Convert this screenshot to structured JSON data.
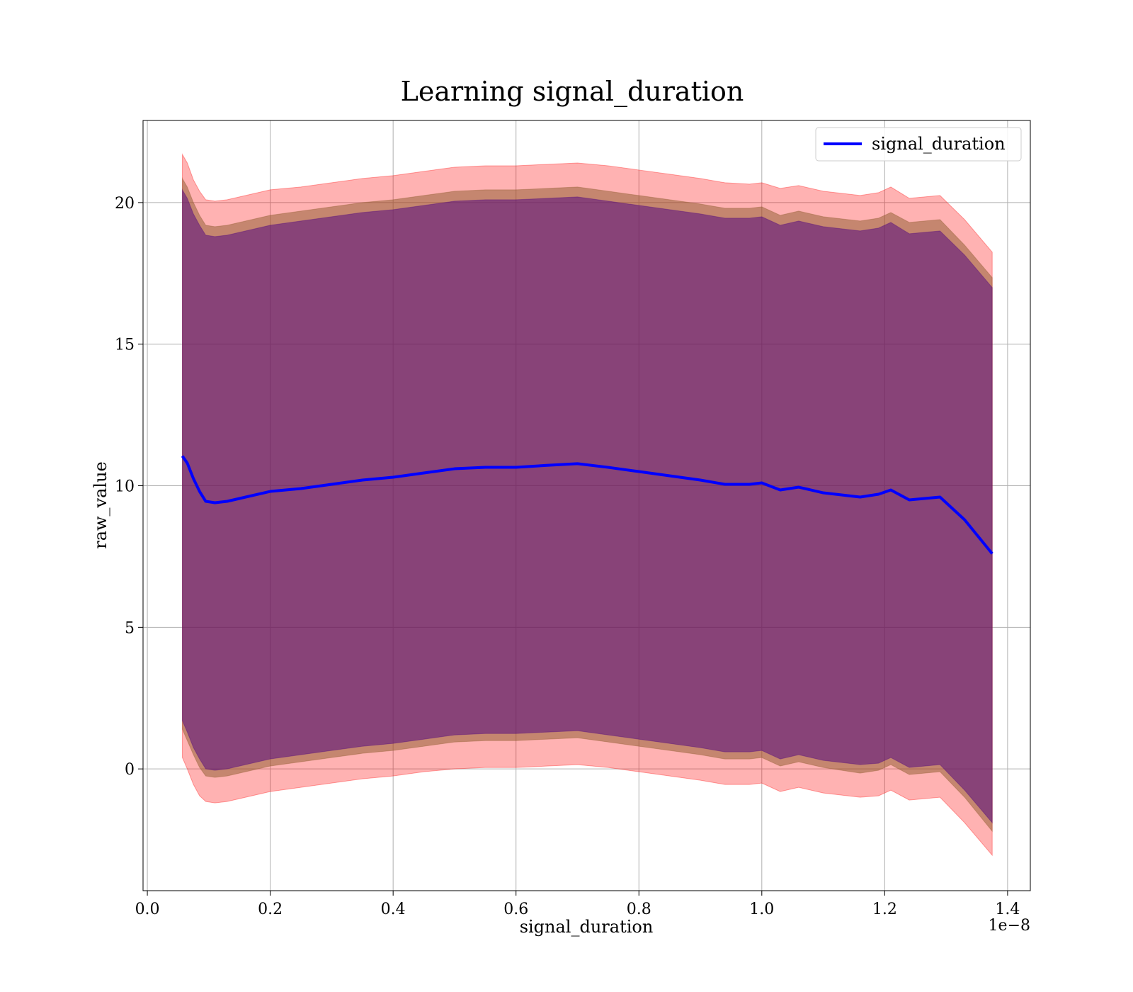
{
  "chart_data": {
    "type": "line",
    "title": "Learning signal_duration",
    "xlabel": "signal_duration",
    "ylabel": "raw_value",
    "x_offset_label": "1e−8",
    "xlim": [
      -0.007,
      1.437
    ],
    "ylim": [
      -4.3,
      22.9
    ],
    "x_ticks": [
      0.0,
      0.2,
      0.4,
      0.6,
      0.8,
      1.0,
      1.2,
      1.4
    ],
    "x_tick_labels": [
      "0.0",
      "0.2",
      "0.4",
      "0.6",
      "0.8",
      "1.0",
      "1.2",
      "1.4"
    ],
    "y_ticks": [
      0,
      5,
      10,
      15,
      20
    ],
    "y_tick_labels": [
      "0",
      "5",
      "10",
      "15",
      "20"
    ],
    "grid": true,
    "legend_position": "top-right",
    "colors": {
      "line": "#0000ff",
      "outer_band": "#ff0000",
      "middle_band": "#8b5a2b",
      "inner_band": "#4b0082"
    },
    "x": [
      0.057,
      0.065,
      0.075,
      0.085,
      0.095,
      0.11,
      0.13,
      0.16,
      0.2,
      0.25,
      0.3,
      0.35,
      0.4,
      0.45,
      0.5,
      0.55,
      0.6,
      0.65,
      0.7,
      0.75,
      0.8,
      0.85,
      0.9,
      0.94,
      0.98,
      1.0,
      1.03,
      1.06,
      1.1,
      1.16,
      1.19,
      1.21,
      1.24,
      1.29,
      1.33,
      1.375
    ],
    "series": [
      {
        "name": "signal_duration",
        "values": [
          11.05,
          10.8,
          10.25,
          9.8,
          9.45,
          9.4,
          9.45,
          9.6,
          9.8,
          9.9,
          10.05,
          10.2,
          10.3,
          10.45,
          10.6,
          10.65,
          10.65,
          10.72,
          10.78,
          10.65,
          10.5,
          10.35,
          10.2,
          10.05,
          10.05,
          10.1,
          9.85,
          9.95,
          9.75,
          9.6,
          9.7,
          9.85,
          9.5,
          9.6,
          8.8,
          7.6
        ]
      }
    ],
    "bands": [
      {
        "lower": [
          0.4,
          0.0,
          -0.55,
          -0.95,
          -1.15,
          -1.2,
          -1.15,
          -1.0,
          -0.8,
          -0.65,
          -0.5,
          -0.35,
          -0.25,
          -0.1,
          0.0,
          0.05,
          0.05,
          0.1,
          0.15,
          0.05,
          -0.1,
          -0.25,
          -0.4,
          -0.55,
          -0.55,
          -0.5,
          -0.8,
          -0.65,
          -0.85,
          -1.0,
          -0.95,
          -0.75,
          -1.1,
          -1.0,
          -1.9,
          -3.05
        ],
        "upper": [
          21.7,
          21.4,
          20.8,
          20.4,
          20.1,
          20.05,
          20.1,
          20.25,
          20.45,
          20.55,
          20.7,
          20.85,
          20.95,
          21.1,
          21.25,
          21.3,
          21.3,
          21.35,
          21.4,
          21.3,
          21.15,
          21.0,
          20.85,
          20.7,
          20.65,
          20.7,
          20.5,
          20.6,
          20.4,
          20.25,
          20.35,
          20.55,
          20.15,
          20.25,
          19.4,
          18.25
        ]
      },
      {
        "lower": [
          1.4,
          1.0,
          0.5,
          0.05,
          -0.25,
          -0.3,
          -0.25,
          -0.1,
          0.1,
          0.25,
          0.4,
          0.55,
          0.65,
          0.8,
          0.95,
          1.0,
          1.0,
          1.05,
          1.1,
          0.95,
          0.8,
          0.65,
          0.5,
          0.35,
          0.35,
          0.4,
          0.1,
          0.25,
          0.05,
          -0.15,
          -0.05,
          0.15,
          -0.2,
          -0.1,
          -1.0,
          -2.2
        ],
        "upper": [
          20.85,
          20.55,
          20.0,
          19.55,
          19.2,
          19.15,
          19.2,
          19.35,
          19.55,
          19.7,
          19.85,
          20.0,
          20.1,
          20.25,
          20.4,
          20.45,
          20.45,
          20.5,
          20.55,
          20.4,
          20.25,
          20.1,
          19.95,
          19.8,
          19.8,
          19.85,
          19.55,
          19.7,
          19.5,
          19.35,
          19.45,
          19.65,
          19.3,
          19.4,
          18.5,
          17.35
        ]
      },
      {
        "lower": [
          1.7,
          1.3,
          0.75,
          0.35,
          0.0,
          -0.05,
          0.0,
          0.15,
          0.35,
          0.5,
          0.65,
          0.8,
          0.9,
          1.05,
          1.2,
          1.25,
          1.25,
          1.3,
          1.35,
          1.2,
          1.05,
          0.9,
          0.75,
          0.6,
          0.6,
          0.65,
          0.35,
          0.5,
          0.3,
          0.15,
          0.2,
          0.4,
          0.05,
          0.15,
          -0.75,
          -1.9
        ],
        "upper": [
          20.45,
          20.15,
          19.6,
          19.2,
          18.85,
          18.8,
          18.85,
          19.0,
          19.2,
          19.35,
          19.5,
          19.65,
          19.75,
          19.9,
          20.05,
          20.1,
          20.1,
          20.15,
          20.2,
          20.05,
          19.9,
          19.75,
          19.6,
          19.45,
          19.45,
          19.5,
          19.2,
          19.35,
          19.15,
          19.0,
          19.1,
          19.3,
          18.9,
          19.0,
          18.15,
          17.0
        ]
      }
    ]
  }
}
